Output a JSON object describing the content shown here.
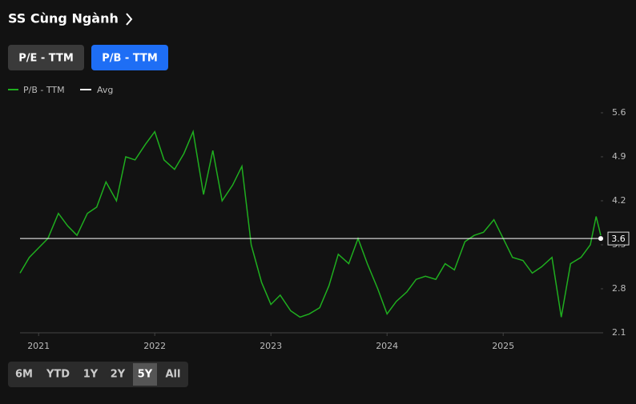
{
  "header": {
    "title": "SS Cùng Ngành"
  },
  "tabs": [
    {
      "label": "P/E - TTM",
      "active": false
    },
    {
      "label": "P/B - TTM",
      "active": true
    }
  ],
  "chart_data": {
    "type": "line",
    "x": [
      2020.84,
      2020.92,
      2021.0,
      2021.08,
      2021.17,
      2021.25,
      2021.33,
      2021.42,
      2021.5,
      2021.58,
      2021.67,
      2021.75,
      2021.83,
      2021.92,
      2022.0,
      2022.08,
      2022.17,
      2022.25,
      2022.33,
      2022.42,
      2022.5,
      2022.58,
      2022.67,
      2022.75,
      2022.83,
      2022.92,
      2023.0,
      2023.08,
      2023.17,
      2023.25,
      2023.33,
      2023.42,
      2023.5,
      2023.58,
      2023.67,
      2023.75,
      2023.83,
      2023.92,
      2024.0,
      2024.08,
      2024.17,
      2024.25,
      2024.33,
      2024.42,
      2024.5,
      2024.58,
      2024.67,
      2024.75,
      2024.83,
      2024.92,
      2025.0,
      2025.08,
      2025.17,
      2025.25,
      2025.33,
      2025.42,
      2025.5,
      2025.58,
      2025.67,
      2025.75,
      2025.8,
      2025.84
    ],
    "series": [
      {
        "name": "P/B - TTM",
        "color": "#1fae1f",
        "values": [
          3.05,
          3.3,
          3.45,
          3.6,
          4.0,
          3.8,
          3.65,
          4.0,
          4.1,
          4.5,
          4.2,
          4.9,
          4.85,
          5.1,
          5.3,
          4.85,
          4.7,
          4.95,
          5.3,
          4.3,
          5.0,
          4.2,
          4.45,
          4.75,
          3.5,
          2.9,
          2.55,
          2.7,
          2.45,
          2.35,
          2.4,
          2.5,
          2.85,
          3.35,
          3.2,
          3.6,
          3.2,
          2.8,
          2.4,
          2.6,
          2.75,
          2.95,
          3.0,
          2.95,
          3.2,
          3.1,
          3.55,
          3.65,
          3.7,
          3.9,
          3.6,
          3.3,
          3.25,
          3.05,
          3.15,
          3.3,
          2.35,
          3.2,
          3.3,
          3.5,
          3.95,
          3.65
        ]
      }
    ],
    "avg_name": "Avg",
    "avg": 3.6,
    "avg_color": "#ffffff",
    "xlim": [
      2020.84,
      2025.84
    ],
    "xticks": [
      2021,
      2022,
      2023,
      2024,
      2025
    ],
    "ylim": [
      2.1,
      5.6
    ],
    "yticks": [
      2.1,
      2.8,
      3.5,
      4.2,
      4.9,
      5.6
    ]
  },
  "ranges": [
    {
      "label": "6M",
      "active": false
    },
    {
      "label": "YTD",
      "active": false
    },
    {
      "label": "1Y",
      "active": false
    },
    {
      "label": "2Y",
      "active": false
    },
    {
      "label": "5Y",
      "active": true
    },
    {
      "label": "All",
      "active": false
    }
  ]
}
